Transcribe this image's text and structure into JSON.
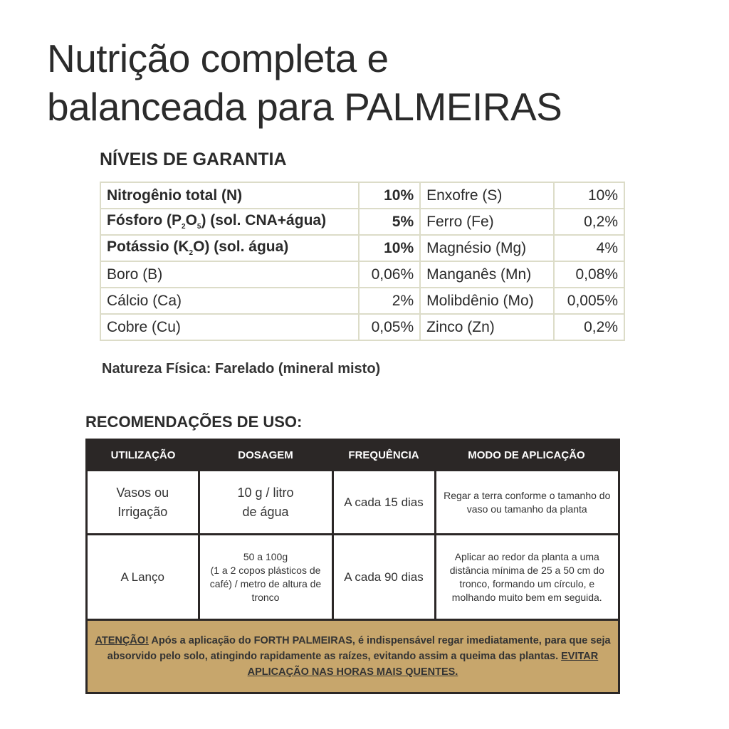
{
  "title": {
    "line1": "Nutrição completa e",
    "line2": "balanceada para PALMEIRAS"
  },
  "garantia": {
    "heading": "NÍVEIS DE GARANTIA",
    "rows": [
      {
        "l_name": "Nitrogênio total (N)",
        "l_val": "10%",
        "r_name": "Enxofre (S)",
        "r_val": "10%"
      },
      {
        "l_name_pre": "Fósforo (P",
        "l_sub1": "2",
        "l_mid": "O",
        "l_sub2": "5",
        "l_post": ") (sol. CNA+água)",
        "l_val": "5%",
        "r_name": "Ferro (Fe)",
        "r_val": "0,2%"
      },
      {
        "l_name_pre": "Potássio (K",
        "l_sub1": "2",
        "l_post": "O) (sol. água)",
        "l_val": "10%",
        "r_name": "Magnésio (Mg)",
        "r_val": "4%"
      },
      {
        "l_name": "Boro (B)",
        "l_val": "0,06%",
        "r_name": "Manganês (Mn)",
        "r_val": "0,08%"
      },
      {
        "l_name": "Cálcio (Ca)",
        "l_val": "2%",
        "r_name": "Molibdênio (Mo)",
        "r_val": "0,005%"
      },
      {
        "l_name": "Cobre (Cu)",
        "l_val": "0,05%",
        "r_name": "Zinco (Zn)",
        "r_val": "0,2%"
      }
    ],
    "natureza": "Natureza Física: Farelado (mineral misto)"
  },
  "recomendacoes": {
    "heading": "RECOMENDAÇÕES DE USO:",
    "columns": [
      "UTILIZAÇÃO",
      "DOSAGEM",
      "FREQUÊNCIA",
      "MODO DE APLICAÇÃO"
    ],
    "rows": [
      {
        "uso1": "Vasos ou",
        "uso2": "Irrigação",
        "dose1": "10 g / litro",
        "dose2": "de água",
        "freq": "A cada 15 dias",
        "modo": "Regar a terra conforme o tamanho do vaso ou tamanho da planta"
      },
      {
        "uso1": "A Lanço",
        "dose1": "50 a 100g",
        "dose2": "(1 a 2 copos plásticos de café) / metro de altura de tronco",
        "freq": "A cada 90 dias",
        "modo": "Aplicar ao redor da planta a uma distância mínima de 25 a 50 cm do tronco, formando um círculo, e molhando muito bem em seguida."
      }
    ],
    "atencao_label": "ATENÇÃO!",
    "atencao_text": " Após a aplicação do FORTH PALMEIRAS, é indispensável regar imediatamente, para que seja absorvido pelo solo, atingindo rapidamente as raízes, evitando assim a queima das plantas. ",
    "atencao_warning": "EVITAR APLICAÇÃO NAS HORAS MAIS QUENTES."
  },
  "colors": {
    "header_bg": "#2b2726",
    "attention_bg": "#c7a66c",
    "grid_border": "#dcdcc8"
  }
}
